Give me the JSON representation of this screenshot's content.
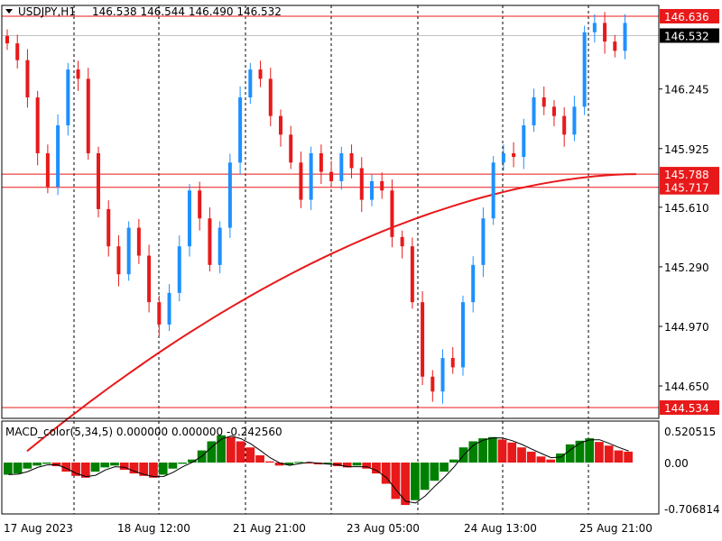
{
  "header": {
    "symbol": "USDJPY,H1",
    "ohlc": "146.538 146.544 146.490 146.532"
  },
  "indicator": {
    "label": "MACD_color(5,34,5) 0.000000 0.000000 -0.242560"
  },
  "colors": {
    "bull": "#1E90FF",
    "bear": "#E8191A",
    "ma": "#E8191A",
    "level": "#E8191A",
    "hist_pos": "#E8191A",
    "hist_neg": "#008000",
    "signal": "#000000",
    "grid": "#000000",
    "frame": "#000000"
  },
  "chart_data": [
    {
      "type": "candlestick",
      "price_axis_ticks": [
        "146.245",
        "145.925",
        "145.610",
        "145.290",
        "144.970",
        "144.650"
      ],
      "price_range": [
        144.52,
        146.69
      ],
      "moving_average_endpoints": [
        144.3,
        145.788
      ],
      "horizontal_levels": [
        {
          "value": 146.636,
          "label": "146.636"
        },
        {
          "value": 145.788,
          "label": "145.788"
        },
        {
          "value": 145.717,
          "label": "145.717"
        },
        {
          "value": 144.534,
          "label": "144.534"
        }
      ],
      "current_price": {
        "value": 146.532,
        "label": "146.532"
      },
      "time_axis_labels": [
        "17 Aug 2023",
        "18 Aug 12:00",
        "21 Aug 21:00",
        "23 Aug 05:00",
        "24 Aug 13:00",
        "25 Aug 21:00"
      ],
      "close_path": [
        146.49,
        146.4,
        146.2,
        145.9,
        145.72,
        146.05,
        146.35,
        146.3,
        145.9,
        145.6,
        145.4,
        145.25,
        145.5,
        145.35,
        145.1,
        144.98,
        145.15,
        145.4,
        145.7,
        145.55,
        145.3,
        145.5,
        145.85,
        146.2,
        146.35,
        146.3,
        146.1,
        146.0,
        145.85,
        145.65,
        145.9,
        145.8,
        145.75,
        145.9,
        145.82,
        145.65,
        145.75,
        145.7,
        145.45,
        145.4,
        145.1,
        144.7,
        144.62,
        144.8,
        144.75,
        145.1,
        145.3,
        145.55,
        145.85,
        145.9,
        145.88,
        146.05,
        146.2,
        146.15,
        146.1,
        146.0,
        146.15,
        146.55,
        146.6,
        146.5,
        146.45,
        146.6,
        146.55,
        146.48,
        146.53
      ],
      "title": "",
      "xlabel": "",
      "ylabel": ""
    },
    {
      "type": "histogram",
      "name": "MACD_color(5,34,5)",
      "y_axis_ticks": [
        "0.520515",
        "0.00",
        "-0.706814"
      ],
      "y_range": [
        -0.706814,
        0.520515
      ],
      "histogram_path": [
        -0.2,
        -0.18,
        -0.1,
        -0.05,
        -0.02,
        -0.06,
        -0.15,
        -0.22,
        -0.25,
        -0.15,
        -0.08,
        -0.05,
        -0.12,
        -0.18,
        -0.22,
        -0.25,
        -0.2,
        -0.1,
        -0.02,
        0.05,
        0.2,
        0.35,
        0.45,
        0.42,
        0.35,
        0.25,
        0.12,
        0.02,
        -0.05,
        -0.04,
        0.01,
        0.0,
        -0.03,
        -0.02,
        -0.06,
        -0.08,
        -0.05,
        -0.1,
        -0.18,
        -0.35,
        -0.6,
        -0.7,
        -0.62,
        -0.45,
        -0.3,
        -0.15,
        0.05,
        0.25,
        0.35,
        0.4,
        0.42,
        0.38,
        0.33,
        0.25,
        0.18,
        0.1,
        0.05,
        0.15,
        0.3,
        0.36,
        0.4,
        0.34,
        0.28,
        0.2,
        0.18
      ]
    }
  ]
}
